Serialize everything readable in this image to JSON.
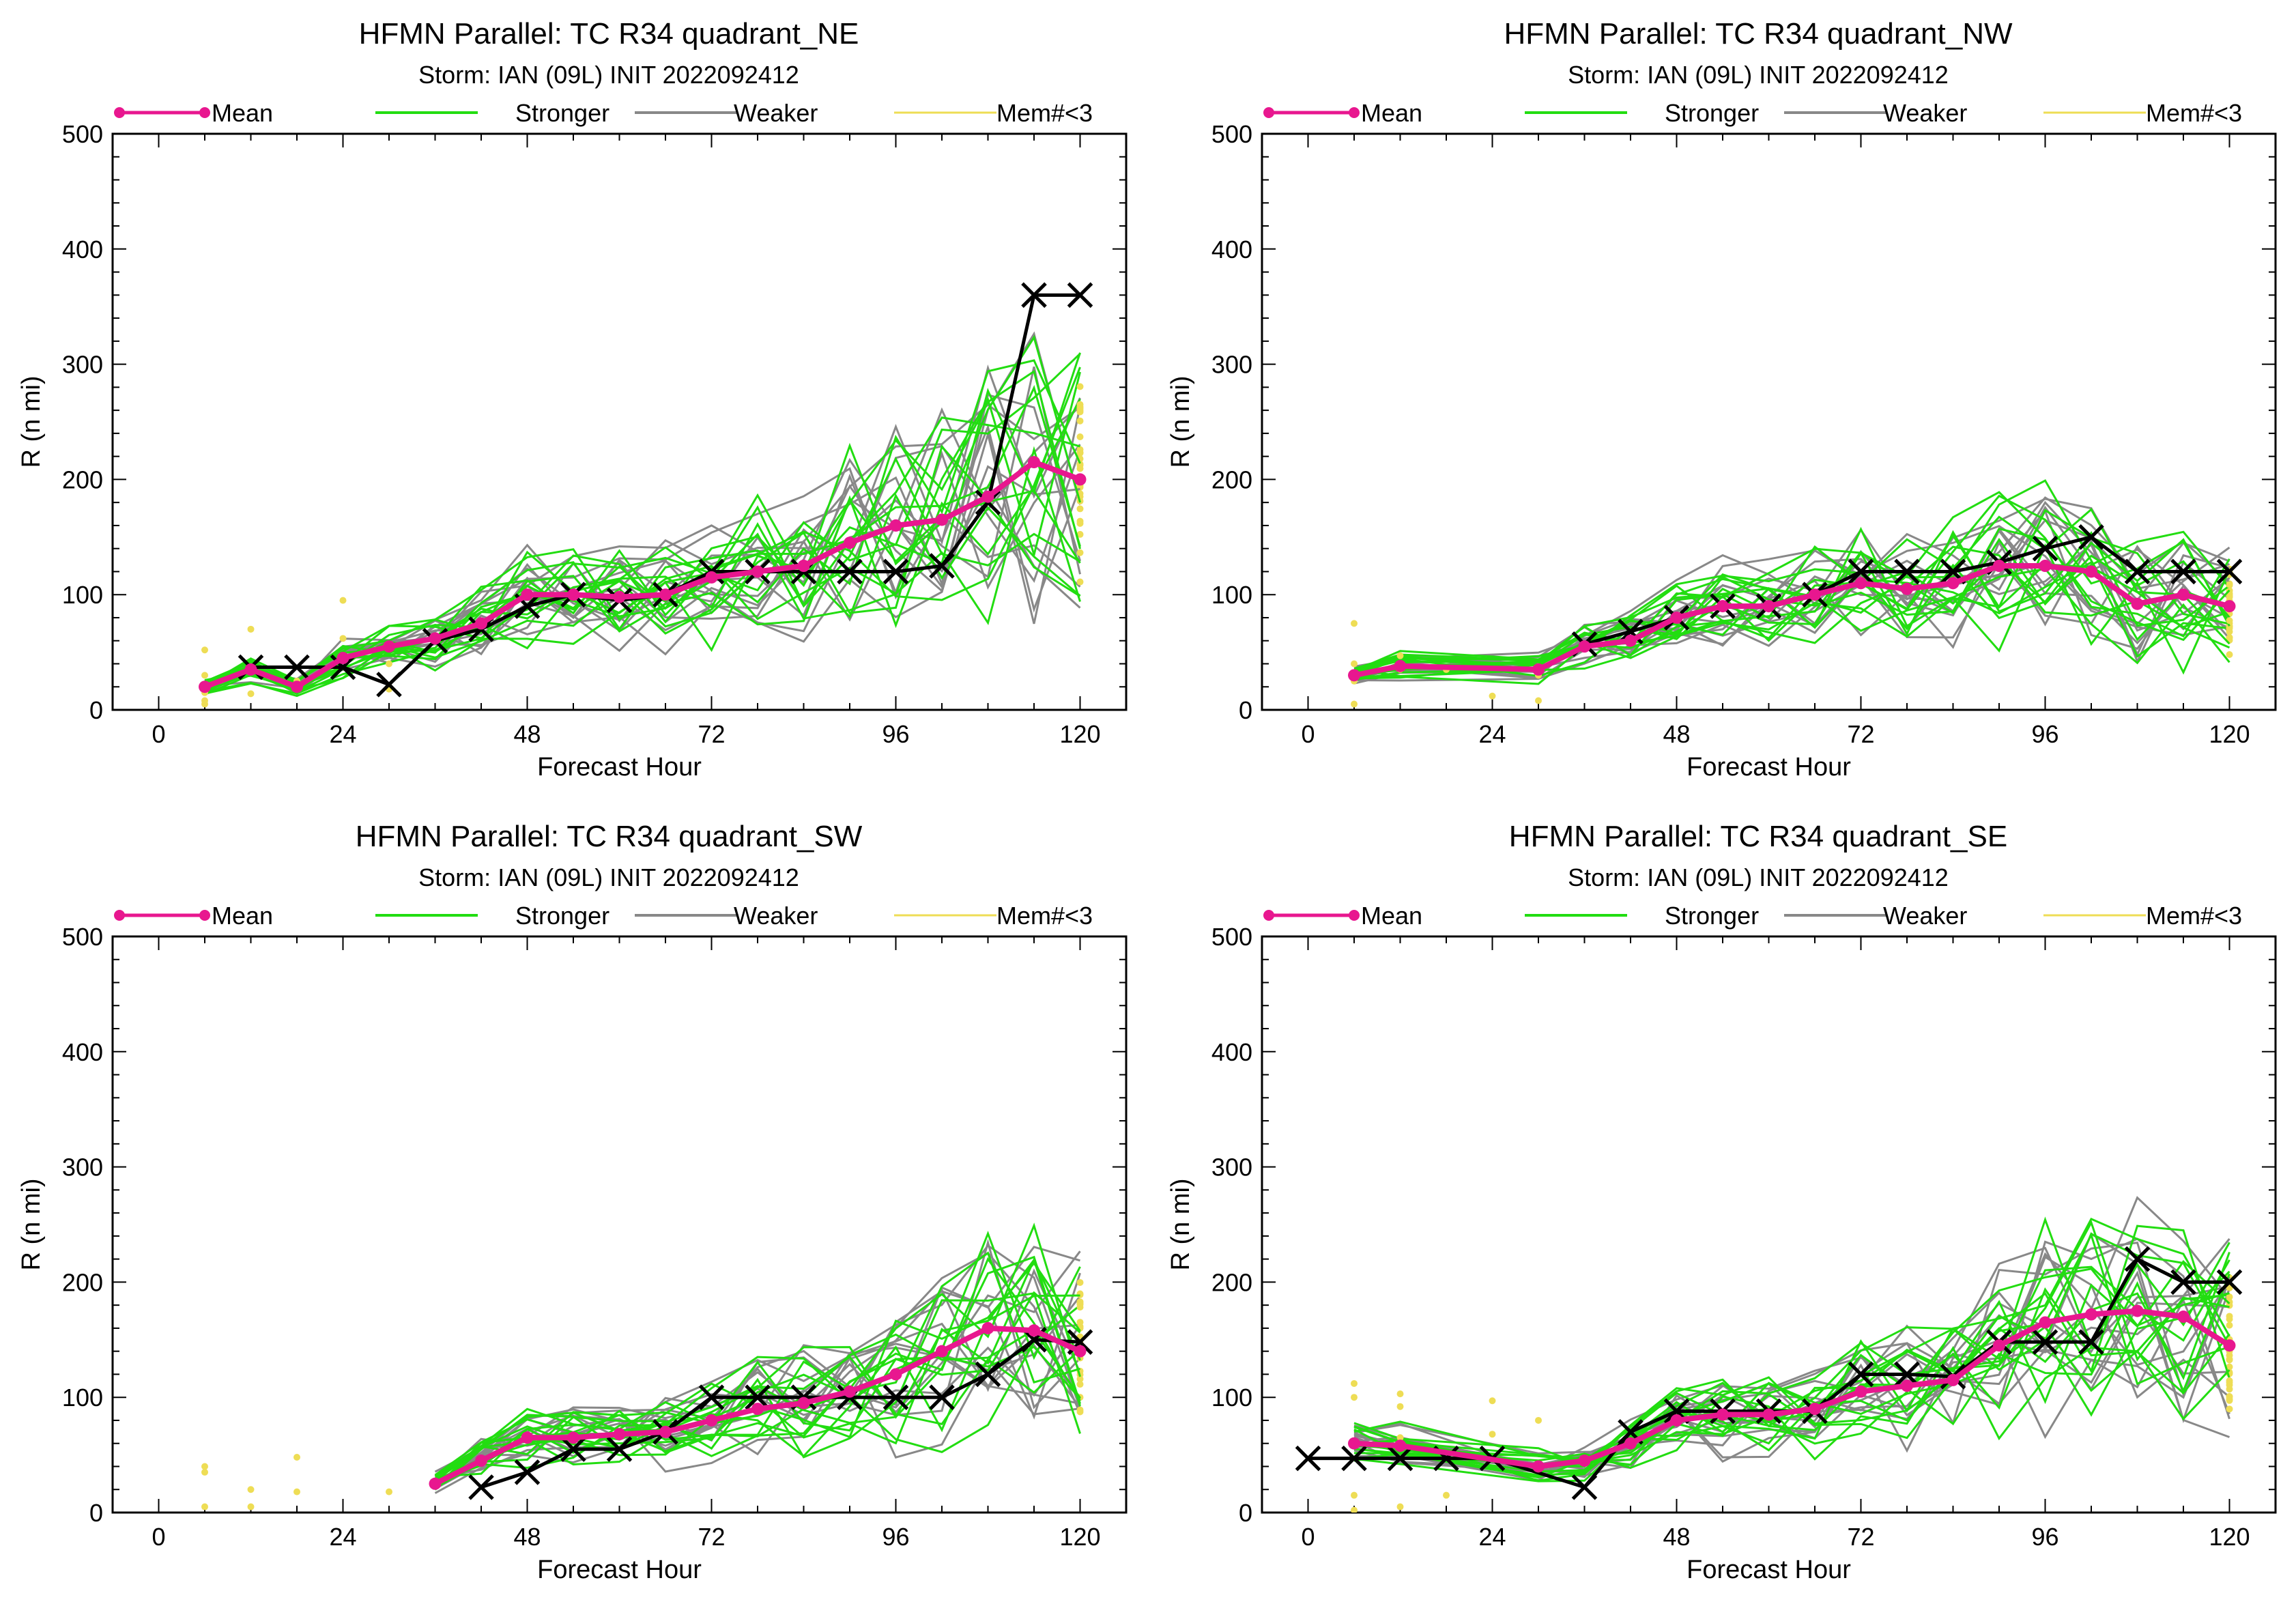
{
  "colors": {
    "mean": "#e8178f",
    "stronger": "#22dd11",
    "weaker": "#888888",
    "few_members": "#eedd55",
    "observed": "#000000"
  },
  "legend": {
    "mean": "Mean",
    "stronger": "Stronger",
    "weaker": "Weaker",
    "few_members": "Mem#<3"
  },
  "axes": {
    "xlabel": "Forecast Hour",
    "ylabel": "R (n mi)",
    "xticks": [
      0,
      24,
      48,
      72,
      96,
      120
    ],
    "yticks": [
      0,
      100,
      200,
      300,
      400,
      500
    ],
    "xlim": [
      -6,
      126
    ],
    "ylim": [
      0,
      500
    ]
  },
  "chart_data": [
    {
      "type": "line",
      "title": "HFMN Parallel: TC  R34 quadrant_NE",
      "subtitle": "Storm: IAN (09L) INIT 2022092412",
      "mean": {
        "x": [
          6,
          12,
          18,
          24,
          30,
          36,
          42,
          48,
          54,
          60,
          66,
          72,
          78,
          84,
          90,
          96,
          102,
          108,
          114,
          120
        ],
        "y": [
          20,
          35,
          20,
          45,
          55,
          62,
          75,
          100,
          100,
          98,
          100,
          115,
          120,
          125,
          145,
          160,
          165,
          185,
          215,
          200
        ]
      },
      "observed": {
        "x": [
          12,
          18,
          24,
          30,
          36,
          42,
          48,
          54,
          60,
          66,
          72,
          78,
          84,
          90,
          96,
          102,
          108,
          114,
          120
        ],
        "y": [
          37,
          37,
          37,
          22,
          60,
          70,
          90,
          100,
          95,
          100,
          120,
          120,
          120,
          120,
          120,
          125,
          180,
          360,
          360
        ]
      },
      "few_member_points": {
        "x": [
          6,
          6,
          6,
          6,
          6,
          12,
          12,
          18,
          24,
          24,
          30,
          30
        ],
        "y": [
          52,
          30,
          15,
          8,
          5,
          70,
          14,
          25,
          95,
          62,
          40,
          18
        ]
      },
      "stronger_count": 15,
      "weaker_count": 13
    },
    {
      "type": "line",
      "title": "HFMN Parallel: TC  R34 quadrant_NW",
      "subtitle": "Storm: IAN (09L) INIT 2022092412",
      "mean": {
        "x": [
          6,
          12,
          30,
          36,
          42,
          48,
          54,
          60,
          66,
          72,
          78,
          84,
          90,
          96,
          102,
          108,
          114,
          120
        ],
        "y": [
          30,
          38,
          35,
          55,
          60,
          80,
          90,
          90,
          100,
          110,
          105,
          110,
          125,
          125,
          120,
          92,
          100,
          90
        ]
      },
      "observed": {
        "x": [
          36,
          42,
          48,
          54,
          60,
          66,
          72,
          78,
          84,
          90,
          96,
          102,
          108,
          114,
          120
        ],
        "y": [
          57,
          68,
          80,
          90,
          90,
          100,
          120,
          120,
          120,
          128,
          140,
          150,
          120,
          120,
          120
        ]
      },
      "few_member_points": {
        "x": [
          6,
          6,
          6,
          6,
          12,
          12,
          18,
          24,
          30,
          30
        ],
        "y": [
          75,
          40,
          25,
          5,
          47,
          35,
          35,
          12,
          30,
          8
        ]
      },
      "stronger_count": 15,
      "weaker_count": 13
    },
    {
      "type": "line",
      "title": "HFMN Parallel: TC  R34 quadrant_SW",
      "subtitle": "Storm: IAN (09L) INIT 2022092412",
      "mean": {
        "x": [
          36,
          42,
          48,
          54,
          60,
          66,
          72,
          78,
          84,
          90,
          96,
          102,
          108,
          114,
          120
        ],
        "y": [
          25,
          45,
          65,
          65,
          68,
          70,
          80,
          90,
          95,
          105,
          120,
          140,
          160,
          158,
          140
        ]
      },
      "observed": {
        "x": [
          42,
          48,
          54,
          60,
          66,
          72,
          78,
          84,
          90,
          96,
          102,
          108,
          114,
          120
        ],
        "y": [
          22,
          35,
          55,
          55,
          70,
          100,
          100,
          100,
          100,
          100,
          100,
          120,
          150,
          148
        ]
      },
      "few_member_points": {
        "x": [
          6,
          6,
          6,
          12,
          12,
          18,
          18,
          30
        ],
        "y": [
          40,
          35,
          5,
          20,
          5,
          48,
          18,
          18
        ]
      },
      "stronger_count": 15,
      "weaker_count": 13
    },
    {
      "type": "line",
      "title": "HFMN Parallel: TC  R34 quadrant_SE",
      "subtitle": "Storm: IAN (09L) INIT 2022092412",
      "mean": {
        "x": [
          6,
          12,
          30,
          36,
          42,
          48,
          54,
          60,
          66,
          72,
          78,
          84,
          90,
          96,
          102,
          108,
          114,
          120
        ],
        "y": [
          60,
          58,
          40,
          45,
          60,
          80,
          85,
          85,
          90,
          105,
          110,
          115,
          145,
          165,
          172,
          175,
          170,
          145
        ]
      },
      "observed": {
        "x": [
          0,
          6,
          12,
          18,
          24,
          36,
          42,
          48,
          54,
          60,
          66,
          72,
          78,
          84,
          90,
          96,
          102,
          108,
          114,
          120
        ],
        "y": [
          47,
          47,
          47,
          47,
          47,
          22,
          70,
          88,
          88,
          88,
          88,
          120,
          120,
          118,
          148,
          148,
          148,
          220,
          200,
          200
        ]
      },
      "few_member_points": {
        "x": [
          6,
          6,
          6,
          6,
          12,
          12,
          12,
          12,
          18,
          24,
          24,
          30,
          30
        ],
        "y": [
          112,
          100,
          15,
          2,
          103,
          92,
          65,
          5,
          15,
          97,
          68,
          80,
          40
        ]
      },
      "stronger_count": 15,
      "weaker_count": 13
    }
  ]
}
